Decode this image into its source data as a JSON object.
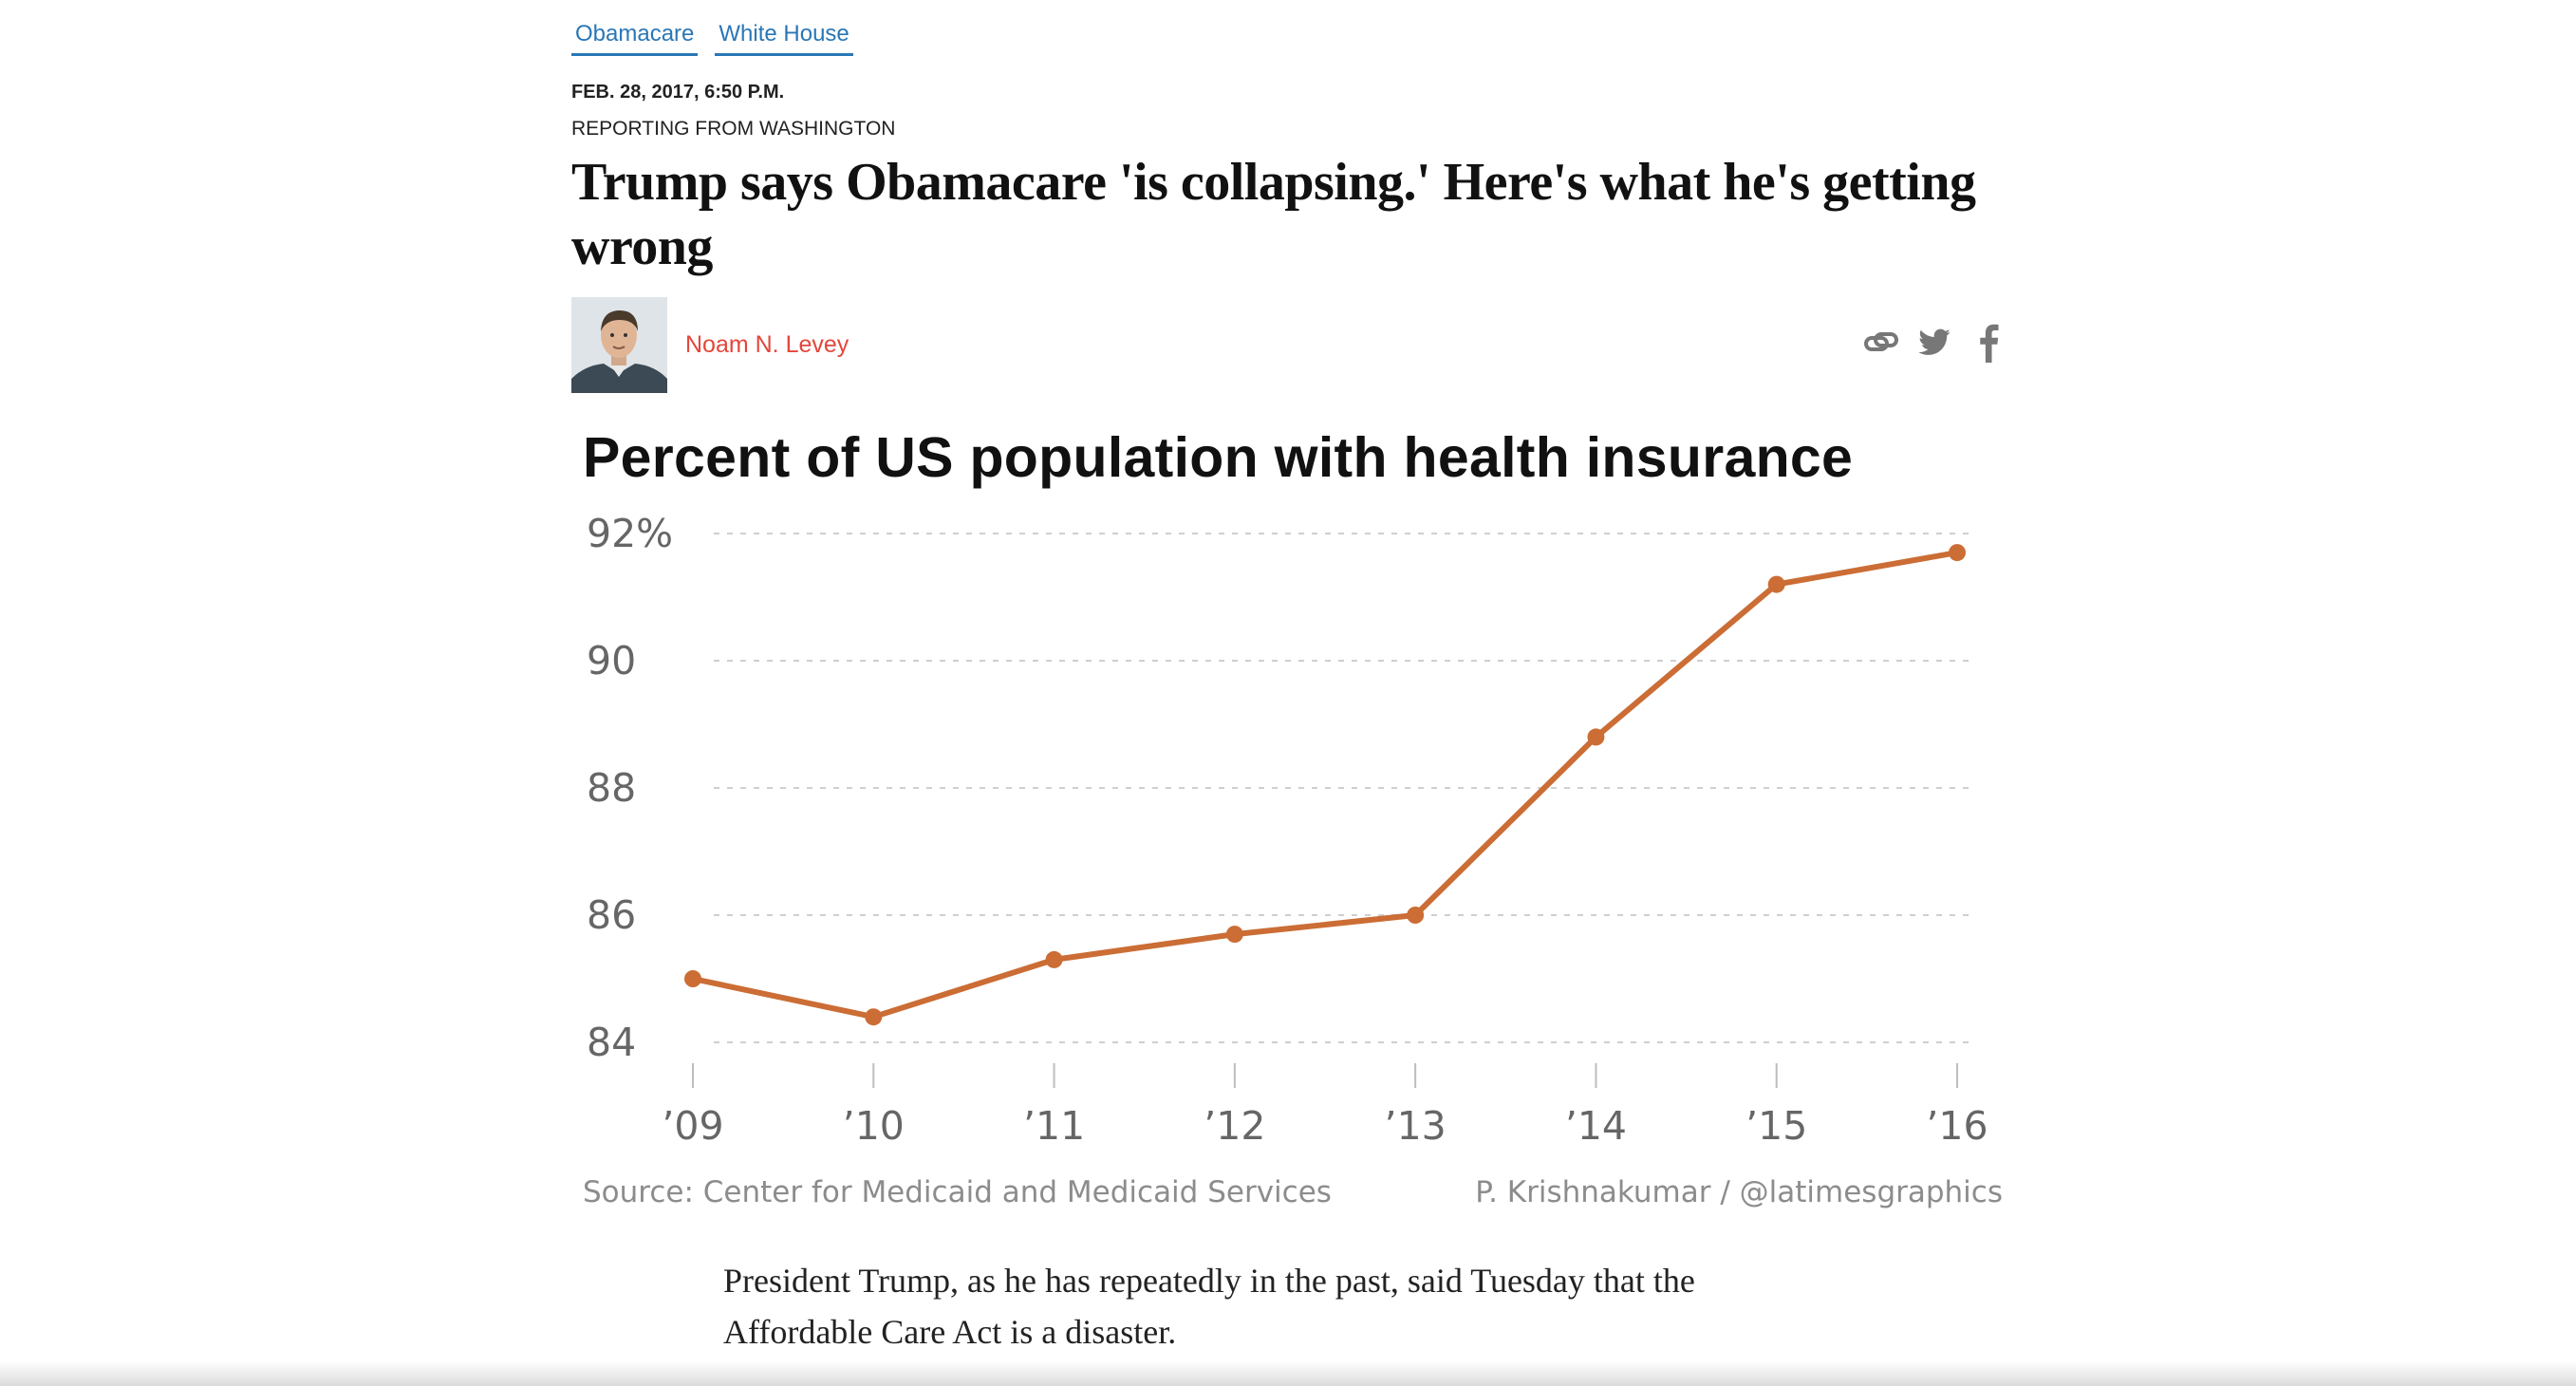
{
  "tags": [
    "Obamacare",
    "White House"
  ],
  "dateline": "FEB. 28, 2017, 6:50 P.M.",
  "reporting": "REPORTING FROM WASHINGTON",
  "headline": "Trump says Obamacare 'is collapsing.' Here's what he's getting wrong",
  "author": "Noam N. Levey",
  "share_icons": [
    "link-icon",
    "twitter-icon",
    "facebook-icon"
  ],
  "colors": {
    "accent_link": "#2a77b6",
    "author": "#e4463b",
    "series": "#cb6d35"
  },
  "chart_data": {
    "type": "line",
    "title": "Percent of US population with health insurance",
    "x": [
      "’09",
      "’10",
      "’11",
      "’12",
      "’13",
      "’14",
      "’15",
      "’16"
    ],
    "series": [
      {
        "values": [
          85.0,
          84.4,
          85.3,
          85.7,
          86.0,
          88.8,
          91.2,
          91.7
        ]
      }
    ],
    "y_ticks": [
      "92%",
      "90",
      "88",
      "86",
      "84"
    ],
    "ylim": [
      84,
      92
    ],
    "grid": true,
    "source": "Source: Center for Medicaid and Medicaid Services",
    "credit": "P. Krishnakumar / @latimesgraphics"
  },
  "body": "President Trump, as he has repeatedly in the past, said Tuesday that the Affordable Care Act is a disaster."
}
